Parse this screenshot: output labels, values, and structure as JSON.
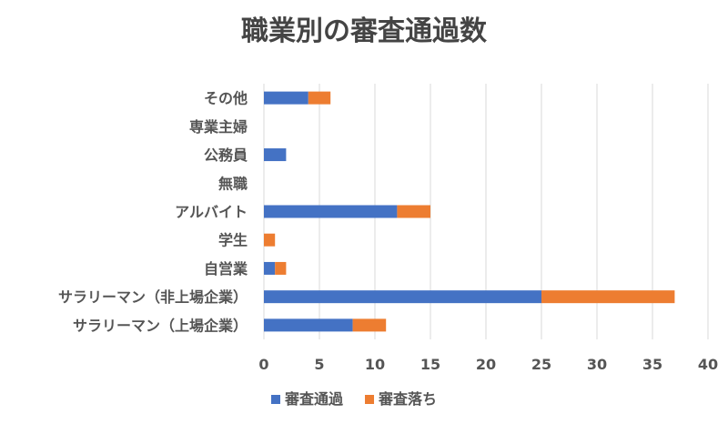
{
  "chart_data": {
    "type": "bar",
    "orientation": "horizontal",
    "stacked": true,
    "title": "職業別の審査通過数",
    "categories": [
      "その他",
      "専業主婦",
      "公務員",
      "無職",
      "アルバイト",
      "学生",
      "自営業",
      "サラリーマン（非上場企業）",
      "サラリーマン（上場企業）"
    ],
    "series": [
      {
        "name": "審査通過",
        "color": "#4472C4",
        "values": [
          4,
          0,
          2,
          0,
          12,
          0,
          1,
          25,
          8
        ]
      },
      {
        "name": "審査落ち",
        "color": "#ED7D31",
        "values": [
          2,
          0,
          0,
          0,
          3,
          1,
          1,
          12,
          3
        ]
      }
    ],
    "xlim": [
      0,
      40
    ],
    "xticks": [
      "0",
      "5",
      "10",
      "15",
      "20",
      "25",
      "30",
      "35",
      "40"
    ],
    "grid": true,
    "legend_position": "bottom"
  }
}
